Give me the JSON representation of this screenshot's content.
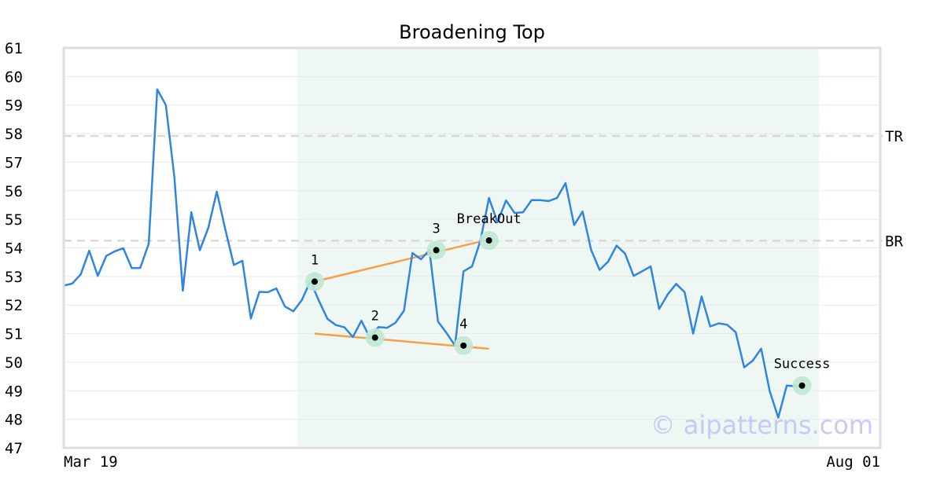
{
  "chart_data": {
    "type": "line",
    "title": "Broadening Top",
    "ylim": [
      47,
      61
    ],
    "yticks": [
      47,
      48,
      49,
      50,
      51,
      52,
      53,
      54,
      55,
      56,
      57,
      58,
      59,
      60,
      61
    ],
    "x_range": [
      0,
      96
    ],
    "x_tick_labels": [
      {
        "x": 0,
        "label": "Mar 19"
      },
      {
        "x": 96,
        "label": "Aug 01"
      }
    ],
    "grid": true,
    "colors": {
      "price": "#2e86de",
      "trendline": "#f5a04a",
      "highlight": "#eef7f3",
      "marker_halo": "#bfe8d4",
      "reference": "#d9d9d9",
      "watermark": "#c9c9f4"
    },
    "highlight_range": [
      27.5,
      88.8
    ],
    "series": [
      {
        "values": [
          52.68,
          52.75,
          53.07,
          53.9,
          53.02,
          53.72,
          53.88,
          53.99,
          53.29,
          53.3,
          54.15,
          59.55,
          59.0,
          56.5,
          52.5,
          55.25,
          53.92,
          54.7,
          55.97,
          54.65,
          53.4,
          53.55,
          51.53,
          52.46,
          52.45,
          52.58,
          51.95,
          51.78,
          52.18,
          52.84,
          52.15,
          51.52,
          51.3,
          51.22,
          50.88,
          51.45,
          50.85,
          51.23,
          51.2,
          51.38,
          51.8,
          53.82,
          53.6,
          53.92,
          51.42,
          51.02,
          50.58,
          53.18,
          53.35,
          54.26,
          55.75,
          54.9,
          55.66,
          55.22,
          55.25,
          55.67,
          55.67,
          55.64,
          55.75,
          56.27,
          54.8,
          55.27,
          53.93,
          53.23,
          53.52,
          54.08,
          53.8,
          53.02,
          53.18,
          53.35,
          51.86,
          52.37,
          52.74,
          52.45,
          51.0,
          52.3,
          51.25,
          51.36,
          51.31,
          51.05,
          49.82,
          50.05,
          50.47,
          48.99,
          48.06,
          49.18,
          49.16,
          49.16
        ]
      }
    ],
    "reference_lines": [
      {
        "label": "TR",
        "y": 57.92
      },
      {
        "label": "BR",
        "y": 54.25
      }
    ],
    "trendlines": [
      {
        "from": [
          29.5,
          52.82
        ],
        "to": [
          49.8,
          54.28
        ]
      },
      {
        "from": [
          29.5,
          51.0
        ],
        "to": [
          50.0,
          50.47
        ]
      }
    ],
    "points": [
      {
        "label": "1",
        "x": 29.5,
        "y": 52.82,
        "label_pos": "above"
      },
      {
        "label": "2",
        "x": 36.6,
        "y": 50.86,
        "label_pos": "above"
      },
      {
        "label": "3",
        "x": 43.8,
        "y": 53.92,
        "label_pos": "above"
      },
      {
        "label": "4",
        "x": 47.0,
        "y": 50.58,
        "label_pos": "above"
      },
      {
        "label": "BreakOut",
        "x": 50.0,
        "y": 54.26,
        "label_pos": "above"
      },
      {
        "label": "Success",
        "x": 86.8,
        "y": 49.18,
        "label_pos": "above"
      }
    ]
  },
  "watermark": "© aipatterns.com"
}
